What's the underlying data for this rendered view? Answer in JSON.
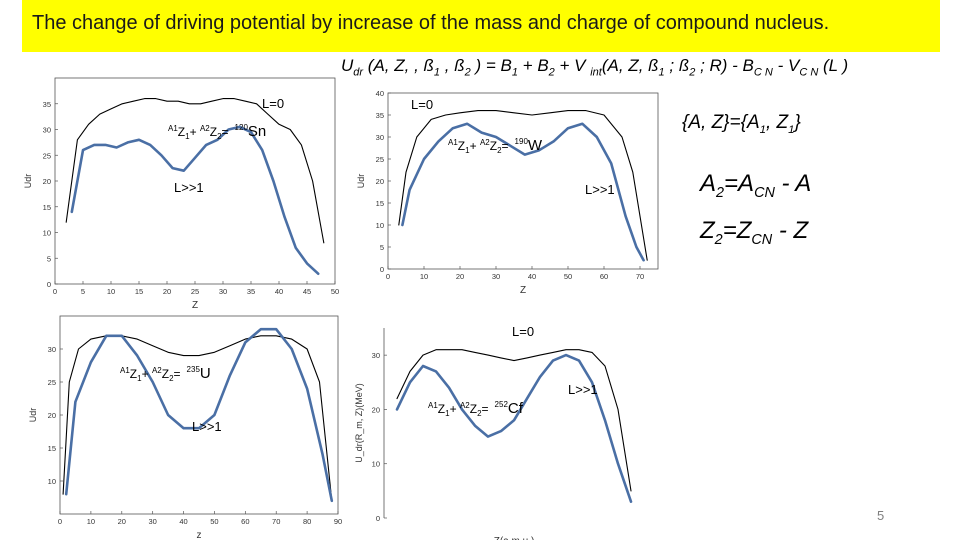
{
  "slide": {
    "title": "The change of driving potential by increase of the mass and charge of compound nucleus.",
    "formula": {
      "lhs": "U",
      "lhs_sub": "dr",
      "lhs_args": " (A, Z, , ß",
      "beta1_sub": "1",
      "mid1": " , ß",
      "beta2_sub": "2",
      "mid2": " ) = B",
      "b1_sub": "1",
      "mid3": " + B",
      "b2_sub": "2",
      "mid4": " + V ",
      "vint_sub": "int",
      "mid5": "(A, Z, ß",
      "beta1b_sub": "1",
      "mid6": " ; ß",
      "beta2b_sub": "2",
      "mid7": " ; R) - B",
      "bcn_sub": "C N",
      "mid8": " - V",
      "vcn_sub": "C N",
      "tail": " (L )"
    },
    "relations": {
      "az": {
        "pre": "{A, Z}={A",
        "s1": "1",
        "mid": ", Z",
        "s2": "1",
        "post": "}"
      },
      "a2": {
        "a": "A",
        "a_sub": "2",
        "eq": "=A",
        "cn_sub": "CN",
        "tail": " - A"
      },
      "z2": {
        "z": "Z",
        "z_sub": "2",
        "eq": "=Z",
        "cn_sub": "CN",
        "tail": " - Z"
      }
    },
    "slide_number": "5",
    "colors": {
      "title_background": "#ffff00",
      "curve_L0": "#000000",
      "curve_Lhigh": "#4a6fa5"
    }
  },
  "chart_data": [
    {
      "type": "line",
      "nucleus": "120Sn",
      "label_L0": "L=0",
      "label_Lhigh": "L>>1",
      "reaction": {
        "a1": "A1",
        "z1": "Z",
        "z1_sub": "1",
        "plus": "+ ",
        "a2": "A2",
        "z2": "Z",
        "z2_sub": "2",
        "eq": "=",
        "mass": "120",
        "symbol": "Sn"
      },
      "xlabel": "Z",
      "ylabel": "Udr",
      "xlim": [
        0,
        50
      ],
      "ylim": [
        0,
        40
      ],
      "xticks": [
        "0",
        "5",
        "10",
        "15",
        "20",
        "25",
        "30",
        "35",
        "40",
        "45",
        "50"
      ],
      "yticks": [
        "0",
        "5",
        "10",
        "15",
        "20",
        "25",
        "30",
        "35"
      ],
      "series": [
        {
          "key": "L0",
          "x": [
            2,
            4,
            6,
            8,
            10,
            12,
            14,
            16,
            18,
            20,
            22,
            24,
            26,
            28,
            30,
            32,
            34,
            36,
            38,
            40,
            42,
            44,
            46,
            48
          ],
          "y": [
            12,
            28,
            31,
            33,
            34,
            35,
            35.5,
            36,
            36,
            35.5,
            35.5,
            35,
            35,
            35.5,
            36,
            36,
            35.5,
            35,
            33,
            31,
            30,
            27,
            20,
            8
          ]
        },
        {
          "key": "Lhigh",
          "x": [
            3,
            5,
            7,
            9,
            11,
            13,
            15,
            17,
            19,
            21,
            23,
            25,
            27,
            29,
            31,
            33,
            35,
            37,
            39,
            41,
            43,
            45,
            47
          ],
          "y": [
            14,
            26,
            27,
            27,
            26.5,
            27.5,
            28,
            27,
            25,
            22.5,
            22,
            24.5,
            27,
            28,
            30,
            30.5,
            29.5,
            26,
            20,
            13,
            7,
            4,
            2
          ]
        }
      ]
    },
    {
      "type": "line",
      "nucleus": "190W",
      "label_L0": "L=0",
      "label_Lhigh": "L>>1",
      "reaction": {
        "a1": "A1",
        "z1": "Z",
        "z1_sub": "1",
        "plus": "+ ",
        "a2": "A2",
        "z2": "Z",
        "z2_sub": "2",
        "eq": "=",
        "mass": "190",
        "symbol": "W"
      },
      "xlabel": "Z",
      "ylabel": "Udr",
      "xlim": [
        0,
        75
      ],
      "ylim": [
        0,
        40
      ],
      "xticks": [
        "0",
        "10",
        "20",
        "30",
        "40",
        "50",
        "60",
        "70"
      ],
      "yticks": [
        "0",
        "5",
        "10",
        "15",
        "20",
        "25",
        "30",
        "35",
        "40"
      ],
      "series": [
        {
          "key": "L0",
          "x": [
            3,
            5,
            8,
            12,
            16,
            20,
            25,
            30,
            35,
            40,
            45,
            50,
            55,
            60,
            65,
            68,
            70,
            72
          ],
          "y": [
            10,
            22,
            30,
            34,
            35,
            35.5,
            36,
            36,
            35.5,
            35,
            35.5,
            36,
            36,
            35,
            30,
            22,
            12,
            2
          ]
        },
        {
          "key": "Lhigh",
          "x": [
            4,
            6,
            10,
            14,
            18,
            22,
            26,
            30,
            34,
            38,
            42,
            46,
            50,
            54,
            58,
            62,
            66,
            69,
            71
          ],
          "y": [
            10,
            18,
            25,
            29,
            32,
            33,
            31,
            30,
            28,
            26,
            27,
            29,
            32,
            33,
            30,
            24,
            12,
            5,
            2
          ]
        }
      ]
    },
    {
      "type": "line",
      "nucleus": "235U",
      "label_Lhigh": "L>>1",
      "reaction": {
        "a1": "A1",
        "z1": "Z",
        "z1_sub": "1",
        "plus": "+ ",
        "a2": "A2",
        "z2": "Z",
        "z2_sub": "2",
        "eq": "=",
        "mass": "235",
        "symbol": "U"
      },
      "xlabel": "z",
      "ylabel": "Udr",
      "xlim": [
        0,
        90
      ],
      "ylim": [
        5,
        35
      ],
      "xticks": [
        "0",
        "10",
        "20",
        "30",
        "40",
        "50",
        "60",
        "70",
        "80",
        "90"
      ],
      "yticks": [
        "10",
        "15",
        "20",
        "25",
        "30"
      ],
      "series": [
        {
          "key": "L0",
          "x": [
            1,
            3,
            6,
            10,
            15,
            20,
            25,
            30,
            35,
            40,
            45,
            50,
            55,
            60,
            65,
            70,
            75,
            80,
            84,
            88
          ],
          "y": [
            8,
            25,
            30,
            31.5,
            32,
            32,
            31.5,
            30.5,
            29.5,
            29,
            29,
            29.5,
            30.5,
            31.5,
            32,
            32,
            31.5,
            30,
            25,
            7
          ]
        },
        {
          "key": "Lhigh",
          "x": [
            2,
            5,
            10,
            15,
            20,
            25,
            30,
            35,
            40,
            45,
            50,
            55,
            60,
            65,
            70,
            75,
            80,
            85,
            88
          ],
          "y": [
            8,
            22,
            28,
            32,
            32,
            29,
            25,
            20,
            18,
            18,
            20,
            26,
            31,
            33,
            33,
            30,
            24,
            14,
            7
          ]
        }
      ]
    },
    {
      "type": "line",
      "nucleus": "252Cf",
      "label_L0": "L=0",
      "label_Lhigh": "L>>1",
      "reaction": {
        "a1": "A1",
        "z1": "Z",
        "z1_sub": "1",
        "plus": "+ ",
        "a2": "A2",
        "z2": "Z",
        "z2_sub": "2",
        "eq": "=",
        "mass": "252",
        "symbol": "Cf"
      },
      "xlabel": "Z(a.m.u.)",
      "ylabel": "U_dr(R_m, Z)(MeV)",
      "xlim": [
        0,
        100
      ],
      "ylim": [
        0,
        35
      ],
      "yticks": [
        "0",
        "10",
        "20",
        "30"
      ],
      "series": [
        {
          "key": "L0",
          "x": [
            5,
            10,
            15,
            20,
            25,
            30,
            35,
            40,
            45,
            50,
            55,
            60,
            65,
            70,
            75,
            80,
            85,
            90,
            95
          ],
          "y": [
            22,
            27,
            30,
            31,
            31,
            31,
            30.5,
            30,
            29.5,
            29,
            29.5,
            30,
            30.5,
            31,
            31,
            30.5,
            28,
            20,
            5
          ]
        },
        {
          "key": "Lhigh",
          "x": [
            5,
            10,
            15,
            20,
            25,
            30,
            35,
            40,
            45,
            50,
            55,
            60,
            65,
            70,
            75,
            80,
            85,
            90,
            95
          ],
          "y": [
            20,
            25,
            28,
            27,
            24,
            20,
            17,
            15,
            16,
            18,
            22,
            26,
            29,
            30,
            29,
            25,
            18,
            10,
            3
          ]
        }
      ]
    }
  ]
}
